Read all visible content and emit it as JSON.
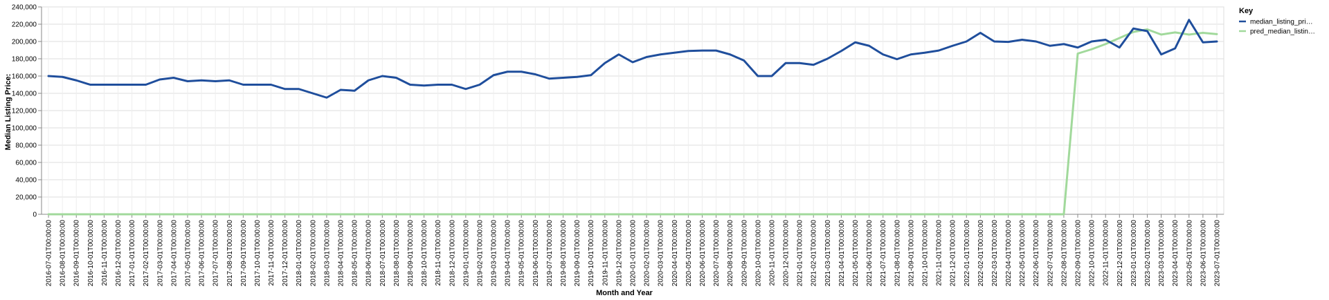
{
  "chart_data": {
    "type": "line",
    "title": "",
    "xlabel": "Month and Year",
    "ylabel": "Median Listing Price:",
    "ylim": [
      0,
      240000
    ],
    "yticks": [
      "0",
      "20,000",
      "40,000",
      "60,000",
      "80,000",
      "100,000",
      "120,000",
      "140,000",
      "160,000",
      "180,000",
      "200,000",
      "220,000",
      "240,000"
    ],
    "grid": true,
    "legend": {
      "title": "Key",
      "placement": "right"
    },
    "x": [
      "2016-07-01T00:00:00",
      "2016-08-01T00:00:00",
      "2016-09-01T00:00:00",
      "2016-10-01T00:00:00",
      "2016-11-01T00:00:00",
      "2016-12-01T00:00:00",
      "2017-01-01T00:00:00",
      "2017-02-01T00:00:00",
      "2017-03-01T00:00:00",
      "2017-04-01T00:00:00",
      "2017-05-01T00:00:00",
      "2017-06-01T00:00:00",
      "2017-07-01T00:00:00",
      "2017-08-01T00:00:00",
      "2017-09-01T00:00:00",
      "2017-10-01T00:00:00",
      "2017-11-01T00:00:00",
      "2017-12-01T00:00:00",
      "2018-01-01T00:00:00",
      "2018-02-01T00:00:00",
      "2018-03-01T00:00:00",
      "2018-04-01T00:00:00",
      "2018-05-01T00:00:00",
      "2018-06-01T00:00:00",
      "2018-07-01T00:00:00",
      "2018-08-01T00:00:00",
      "2018-09-01T00:00:00",
      "2018-10-01T00:00:00",
      "2018-11-01T00:00:00",
      "2018-12-01T00:00:00",
      "2019-01-01T00:00:00",
      "2019-02-01T00:00:00",
      "2019-03-01T00:00:00",
      "2019-04-01T00:00:00",
      "2019-05-01T00:00:00",
      "2019-06-01T00:00:00",
      "2019-07-01T00:00:00",
      "2019-08-01T00:00:00",
      "2019-09-01T00:00:00",
      "2019-10-01T00:00:00",
      "2019-11-01T00:00:00",
      "2019-12-01T00:00:00",
      "2020-01-01T00:00:00",
      "2020-02-01T00:00:00",
      "2020-03-01T00:00:00",
      "2020-04-01T00:00:00",
      "2020-05-01T00:00:00",
      "2020-06-01T00:00:00",
      "2020-07-01T00:00:00",
      "2020-08-01T00:00:00",
      "2020-09-01T00:00:00",
      "2020-10-01T00:00:00",
      "2020-11-01T00:00:00",
      "2020-12-01T00:00:00",
      "2021-01-01T00:00:00",
      "2021-02-01T00:00:00",
      "2021-03-01T00:00:00",
      "2021-04-01T00:00:00",
      "2021-05-01T00:00:00",
      "2021-06-01T00:00:00",
      "2021-07-01T00:00:00",
      "2021-08-01T00:00:00",
      "2021-09-01T00:00:00",
      "2021-10-01T00:00:00",
      "2021-11-01T00:00:00",
      "2021-12-01T00:00:00",
      "2022-01-01T00:00:00",
      "2022-02-01T00:00:00",
      "2022-03-01T00:00:00",
      "2022-04-01T00:00:00",
      "2022-05-01T00:00:00",
      "2022-06-01T00:00:00",
      "2022-07-01T00:00:00",
      "2022-08-01T00:00:00",
      "2022-09-01T00:00:00",
      "2022-10-01T00:00:00",
      "2022-11-01T00:00:00",
      "2022-12-01T00:00:00",
      "2023-01-01T00:00:00",
      "2023-02-01T00:00:00",
      "2023-03-01T00:00:00",
      "2023-04-01T00:00:00",
      "2023-05-01T00:00:00",
      "2023-06-01T00:00:00",
      "2023-07-01T00:00:00"
    ],
    "series": [
      {
        "name": "median_listing_pri…",
        "color": "#1f4e9c",
        "values": [
          160000,
          159000,
          155000,
          150000,
          150000,
          150000,
          150000,
          150000,
          156000,
          158000,
          154000,
          155000,
          154000,
          155000,
          150000,
          150000,
          150000,
          145000,
          145000,
          140000,
          135000,
          144000,
          143000,
          155000,
          160000,
          158000,
          150000,
          149000,
          150000,
          150000,
          145000,
          150000,
          161000,
          165000,
          165000,
          162000,
          157000,
          158000,
          159000,
          161000,
          175000,
          185000,
          176000,
          182000,
          185000,
          187000,
          189000,
          189500,
          189500,
          185000,
          178000,
          160000,
          160000,
          175000,
          175000,
          173000,
          180000,
          189000,
          199000,
          195000,
          185000,
          179500,
          185000,
          187000,
          189500,
          195000,
          200000,
          210000,
          200000,
          199500,
          202000,
          200000,
          195000,
          197000,
          193000,
          200000,
          202000,
          193000,
          215000,
          212000,
          185000,
          192000,
          225000,
          199000,
          200000
        ]
      },
      {
        "name": "pred_median_listin…",
        "color": "#a1d99b",
        "values": [
          0,
          0,
          0,
          0,
          0,
          0,
          0,
          0,
          0,
          0,
          0,
          0,
          0,
          0,
          0,
          0,
          0,
          0,
          0,
          0,
          0,
          0,
          0,
          0,
          0,
          0,
          0,
          0,
          0,
          0,
          0,
          0,
          0,
          0,
          0,
          0,
          0,
          0,
          0,
          0,
          0,
          0,
          0,
          0,
          0,
          0,
          0,
          0,
          0,
          0,
          0,
          0,
          0,
          0,
          0,
          0,
          0,
          0,
          0,
          0,
          0,
          0,
          0,
          0,
          0,
          0,
          0,
          0,
          0,
          0,
          0,
          0,
          0,
          0,
          186000,
          191000,
          197000,
          204000,
          211000,
          214000,
          208000,
          210500,
          208000,
          210000,
          208500
        ]
      }
    ]
  }
}
